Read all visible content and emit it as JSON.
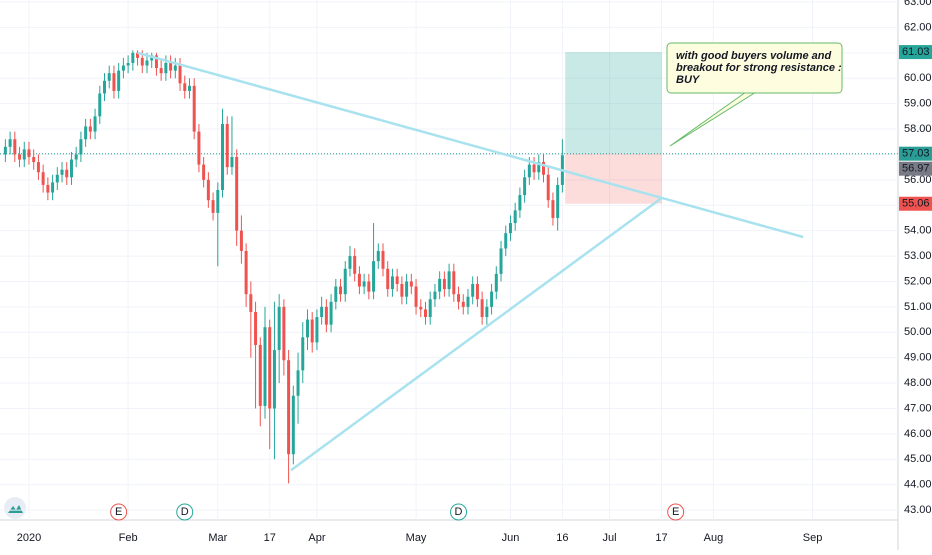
{
  "chart_data": {
    "type": "candlestick",
    "x": [
      -5,
      -4,
      -3,
      -2,
      -1,
      0,
      1,
      2,
      3,
      4,
      5,
      6,
      7,
      8,
      9,
      10,
      11,
      12,
      13,
      14,
      15,
      16,
      17,
      18,
      19,
      20,
      21,
      22,
      23,
      24,
      25,
      26,
      27,
      28,
      29,
      30,
      31,
      32,
      33,
      34,
      35,
      36,
      37,
      38,
      39,
      40,
      41,
      42,
      43,
      44,
      45,
      46,
      47,
      48,
      49,
      50,
      51,
      52,
      53,
      54,
      55,
      56,
      57,
      58,
      59,
      60,
      61,
      62,
      63,
      64,
      65,
      66,
      67,
      68,
      69,
      70,
      71,
      72,
      73,
      74,
      75,
      76,
      77,
      78,
      79,
      80,
      81,
      82,
      83,
      84,
      85,
      86,
      87,
      88,
      89,
      90,
      91,
      92,
      93,
      94,
      95,
      96,
      97,
      98,
      99,
      100,
      101,
      102,
      103,
      104,
      105,
      106,
      107,
      108,
      109,
      110,
      111,
      112,
      113
    ],
    "open": [
      57.0,
      57.3,
      57.6,
      57.0,
      56.8,
      57.2,
      56.9,
      56.7,
      56.3,
      55.8,
      55.5,
      55.9,
      56.2,
      56.4,
      56.1,
      56.8,
      57.0,
      57.6,
      58.1,
      57.9,
      58.5,
      59.4,
      59.9,
      60.2,
      59.5,
      60.3,
      60.5,
      60.6,
      61.0,
      60.8,
      60.5,
      60.7,
      60.9,
      60.4,
      60.2,
      60.6,
      60.3,
      60.5,
      59.8,
      59.5,
      59.7,
      57.9,
      56.6,
      56.0,
      55.2,
      54.7,
      55.6,
      58.2,
      56.5,
      56.9,
      54.0,
      53.2,
      51.5,
      50.8,
      49.5,
      47.1,
      50.2,
      47.0,
      49.3,
      51.0,
      48.9,
      45.2,
      47.5,
      48.5,
      49.8,
      50.5,
      49.6,
      50.6,
      51.0,
      50.3,
      51.2,
      51.8,
      51.5,
      52.5,
      53.0,
      52.3,
      51.8,
      52.0,
      51.6,
      52.8,
      53.2,
      52.5,
      51.7,
      52.2,
      51.9,
      51.4,
      52.0,
      51.8,
      51.0,
      50.9,
      50.6,
      51.3,
      51.6,
      52.1,
      51.7,
      52.4,
      51.5,
      51.2,
      51.0,
      51.4,
      51.9,
      51.3,
      50.6,
      51.0,
      51.6,
      52.3,
      53.3,
      53.9,
      54.3,
      54.8,
      55.4,
      56.1,
      56.6,
      56.3,
      56.7,
      56.2,
      55.2,
      54.5,
      55.8
    ],
    "high": [
      57.6,
      57.9,
      57.9,
      57.3,
      57.5,
      57.5,
      57.2,
      57.0,
      56.6,
      56.1,
      56.2,
      56.5,
      56.7,
      56.7,
      57.1,
      57.3,
      57.9,
      58.4,
      58.4,
      58.8,
      59.7,
      60.2,
      60.5,
      60.5,
      60.6,
      60.8,
      60.9,
      61.1,
      61.1,
      61.1,
      61.0,
      61.0,
      61.0,
      60.7,
      60.9,
      60.9,
      60.8,
      60.8,
      60.1,
      60.0,
      60.0,
      58.2,
      56.9,
      56.3,
      55.5,
      55.9,
      58.8,
      58.5,
      58.5,
      57.2,
      54.6,
      53.5,
      52.0,
      51.2,
      49.8,
      51.0,
      50.5,
      51.2,
      51.5,
      51.3,
      49.3,
      47.9,
      49.2,
      50.4,
      50.9,
      50.8,
      50.9,
      51.4,
      51.3,
      51.5,
      52.1,
      52.1,
      52.8,
      53.4,
      53.3,
      52.6,
      52.3,
      52.3,
      54.3,
      53.5,
      53.5,
      52.8,
      52.5,
      52.5,
      52.2,
      52.3,
      52.3,
      52.1,
      51.3,
      51.2,
      51.6,
      51.9,
      52.4,
      52.4,
      52.7,
      52.7,
      51.8,
      51.5,
      51.7,
      52.2,
      52.2,
      51.6,
      51.3,
      51.9,
      52.6,
      53.6,
      54.2,
      54.6,
      55.1,
      55.7,
      56.4,
      56.9,
      56.9,
      57.0,
      57.0,
      56.5,
      55.5,
      56.1,
      57.6
    ],
    "low": [
      56.7,
      57.0,
      56.7,
      56.5,
      56.5,
      56.6,
      56.4,
      56.0,
      55.5,
      55.2,
      55.2,
      55.6,
      55.9,
      55.8,
      55.8,
      56.5,
      56.7,
      57.3,
      57.6,
      57.6,
      58.2,
      59.1,
      59.6,
      59.2,
      59.2,
      60.0,
      60.2,
      60.3,
      60.5,
      60.2,
      60.2,
      60.4,
      60.1,
      59.9,
      59.9,
      60.0,
      60.0,
      59.5,
      59.2,
      59.2,
      57.6,
      56.3,
      55.7,
      54.9,
      54.4,
      52.6,
      55.3,
      56.2,
      56.2,
      53.4,
      52.7,
      51.0,
      49.0,
      47.0,
      46.3,
      46.6,
      45.4,
      45.0,
      48.0,
      48.3,
      44.05,
      44.8,
      46.4,
      48.0,
      49.3,
      49.2,
      49.3,
      50.3,
      50.0,
      50.0,
      50.9,
      51.2,
      51.2,
      52.2,
      52.0,
      51.5,
      51.5,
      51.3,
      51.3,
      52.5,
      52.2,
      51.4,
      51.4,
      51.6,
      51.1,
      51.1,
      51.5,
      50.7,
      50.6,
      50.3,
      50.3,
      51.0,
      51.3,
      51.4,
      51.4,
      51.2,
      50.9,
      50.7,
      50.7,
      51.1,
      51.0,
      50.3,
      50.3,
      50.7,
      51.3,
      52.0,
      53.0,
      53.6,
      54.0,
      54.5,
      55.1,
      55.8,
      56.0,
      56.0,
      55.9,
      54.9,
      54.2,
      54.0,
      55.5
    ],
    "close": [
      57.3,
      57.6,
      57.0,
      56.8,
      57.2,
      56.9,
      56.7,
      56.3,
      55.8,
      55.5,
      55.9,
      56.2,
      56.4,
      56.1,
      56.8,
      57.0,
      57.6,
      58.1,
      57.9,
      58.5,
      59.4,
      59.9,
      60.2,
      59.5,
      60.3,
      60.5,
      60.6,
      61.0,
      60.8,
      60.5,
      60.7,
      60.9,
      60.4,
      60.2,
      60.6,
      60.3,
      60.5,
      59.8,
      59.5,
      59.7,
      57.9,
      56.6,
      56.0,
      55.2,
      54.7,
      55.6,
      58.2,
      56.5,
      56.9,
      54.0,
      53.2,
      51.5,
      50.8,
      49.5,
      47.1,
      50.2,
      47.0,
      49.3,
      51.0,
      48.9,
      45.2,
      47.5,
      48.5,
      49.8,
      50.5,
      49.6,
      50.6,
      51.0,
      50.3,
      51.2,
      51.8,
      51.5,
      52.5,
      53.0,
      52.3,
      51.8,
      52.0,
      51.6,
      52.8,
      53.2,
      52.5,
      51.7,
      52.2,
      51.9,
      51.4,
      52.0,
      51.8,
      51.0,
      50.9,
      50.6,
      51.3,
      51.6,
      52.1,
      51.7,
      52.4,
      51.5,
      51.2,
      51.0,
      51.4,
      51.9,
      51.3,
      50.6,
      51.0,
      51.6,
      52.3,
      53.3,
      53.9,
      54.3,
      54.8,
      55.4,
      56.1,
      56.6,
      56.3,
      56.7,
      56.2,
      55.2,
      54.5,
      55.8,
      56.97
    ],
    "up_color": "#26a69a",
    "down_color": "#ef5350",
    "xlim": [
      -6.14,
      184.1
    ],
    "ylim": [
      42.61,
      63.08
    ],
    "xticks": [
      {
        "value": 0,
        "label": "2020"
      },
      {
        "value": 21,
        "label": "Feb"
      },
      {
        "value": 40,
        "label": "Mar"
      },
      {
        "value": 51,
        "label": "17"
      },
      {
        "value": 61,
        "label": "Apr"
      },
      {
        "value": 82,
        "label": "May"
      },
      {
        "value": 102,
        "label": "Jun"
      },
      {
        "value": 113,
        "label": "16"
      },
      {
        "value": 123,
        "label": "Jul"
      },
      {
        "value": 134,
        "label": "17"
      },
      {
        "value": 145,
        "label": "Aug"
      },
      {
        "value": 166,
        "label": "Sep"
      }
    ],
    "yticks": [
      {
        "value": 43,
        "label": "43.00"
      },
      {
        "value": 44,
        "label": "44.00"
      },
      {
        "value": 45,
        "label": "45.00"
      },
      {
        "value": 46,
        "label": "46.00"
      },
      {
        "value": 47,
        "label": "47.00"
      },
      {
        "value": 48,
        "label": "48.00"
      },
      {
        "value": 49,
        "label": "49.00"
      },
      {
        "value": 50,
        "label": "50.00"
      },
      {
        "value": 51,
        "label": "51.00"
      },
      {
        "value": 52,
        "label": "52.00"
      },
      {
        "value": 53,
        "label": "53.00"
      },
      {
        "value": 54,
        "label": "54.00"
      },
      {
        "value": 55,
        "label": "55.00"
      },
      {
        "value": 56,
        "label": "56.00"
      },
      {
        "value": 57,
        "label": "57.00"
      },
      {
        "value": 58,
        "label": "58.00"
      },
      {
        "value": 59,
        "label": "59.00"
      },
      {
        "value": 60,
        "label": "60.00"
      },
      {
        "value": 61,
        "label": "61.00"
      },
      {
        "value": 62,
        "label": "62.00"
      },
      {
        "value": 63,
        "label": "63.00"
      }
    ],
    "grid": true,
    "trend_lines": [
      {
        "x": [
          23,
          164
        ],
        "y": [
          61.0,
          53.75
        ],
        "color": "#a8e2ee"
      },
      {
        "x": [
          55.5,
          134
        ],
        "y": [
          44.57,
          55.28
        ],
        "color": "#a8e2ee"
      }
    ],
    "position": {
      "x": [
        113.6,
        134.1
      ],
      "target": 61.03,
      "entry": 57.03,
      "stop": 55.06
    },
    "price_labels": [
      {
        "value": 61.03,
        "color": "#26a69a"
      },
      {
        "value": 57.03,
        "color": "#2a9d96"
      },
      {
        "value": 56.97,
        "color": "#787b86"
      },
      {
        "value": 55.06,
        "color": "#ef5350"
      }
    ],
    "events": [
      {
        "x": 19,
        "label": "E",
        "color": "#ef5350"
      },
      {
        "x": 33,
        "label": "D",
        "color": "#26a69a"
      },
      {
        "x": 91,
        "label": "D",
        "color": "#26a69a"
      },
      {
        "x": 137,
        "label": "E",
        "color": "#ef5350"
      }
    ],
    "annotation": {
      "lines": [
        "with good buyers volume and",
        "breakout for strong resistance :",
        "BUY"
      ]
    }
  }
}
